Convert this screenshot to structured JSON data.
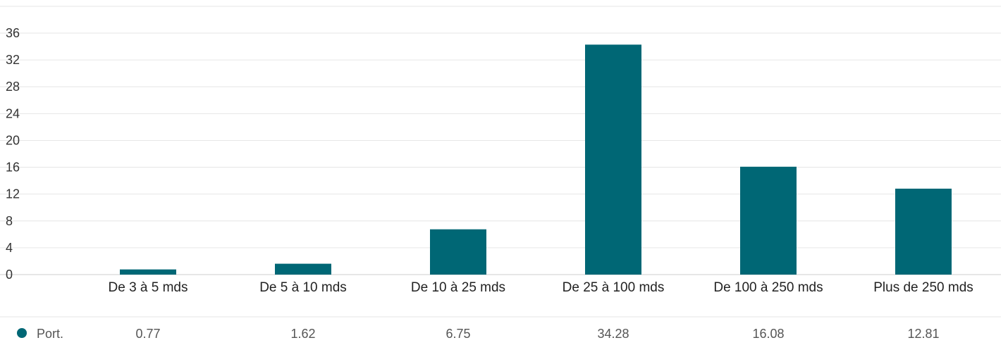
{
  "chart_data": {
    "type": "bar",
    "categories": [
      "De 3 à 5 mds",
      "De 5 à 10 mds",
      "De 10 à 25 mds",
      "De 25 à 100 mds",
      "De 100 à 250 mds",
      "Plus de 250 mds"
    ],
    "series": [
      {
        "name": "Port.",
        "values": [
          0.77,
          1.62,
          6.75,
          34.28,
          16.08,
          12.81
        ],
        "color": "#006775"
      }
    ],
    "ylim": [
      0,
      36
    ],
    "yticks": [
      0,
      4,
      8,
      12,
      16,
      20,
      24,
      28,
      32,
      36
    ],
    "grid": true,
    "legend": "bottom-left",
    "data_table": true
  }
}
